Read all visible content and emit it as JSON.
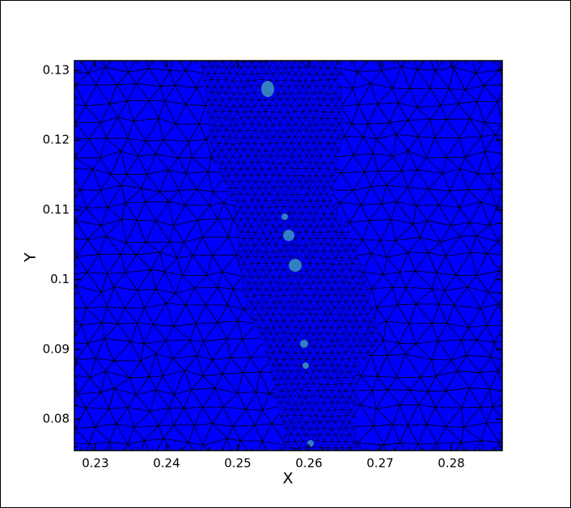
{
  "chart_data": {
    "type": "mesh",
    "xlabel": "X",
    "ylabel": "Y",
    "xlim": [
      0.22705,
      0.28716
    ],
    "ylim": [
      0.07548,
      0.13139
    ],
    "xticks": [
      0.23,
      0.24,
      0.25,
      0.26,
      0.27,
      0.28
    ],
    "yticks": [
      0.08,
      0.09,
      0.1,
      0.11,
      0.12,
      0.13
    ],
    "color": "#0000ff"
  }
}
